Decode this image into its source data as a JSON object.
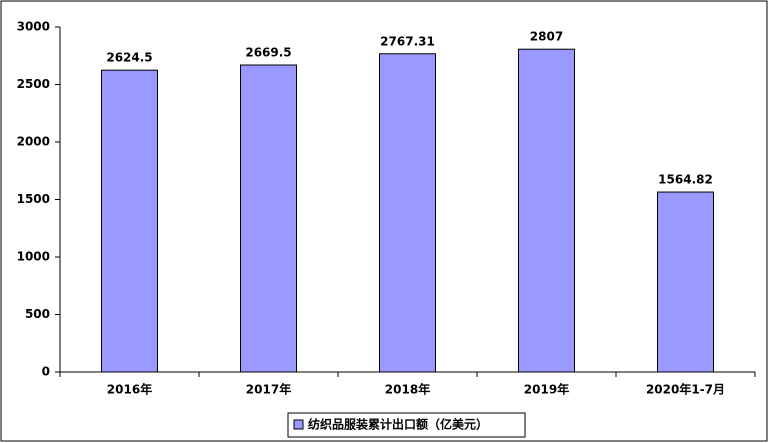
{
  "chart_data": {
    "type": "bar",
    "categories": [
      "2016年",
      "2017年",
      "2018年",
      "2019年",
      "2020年1-7月"
    ],
    "series": [
      {
        "name": "纺织品服装累计出口额（亿美元）",
        "color": "#9999ff",
        "values": [
          2624.5,
          2669.5,
          2767.31,
          2807,
          1564.82
        ]
      }
    ],
    "ylim": [
      0,
      3000
    ],
    "yticks": [
      0,
      500,
      1000,
      1500,
      2000,
      2500,
      3000
    ],
    "legend": "bottom"
  }
}
